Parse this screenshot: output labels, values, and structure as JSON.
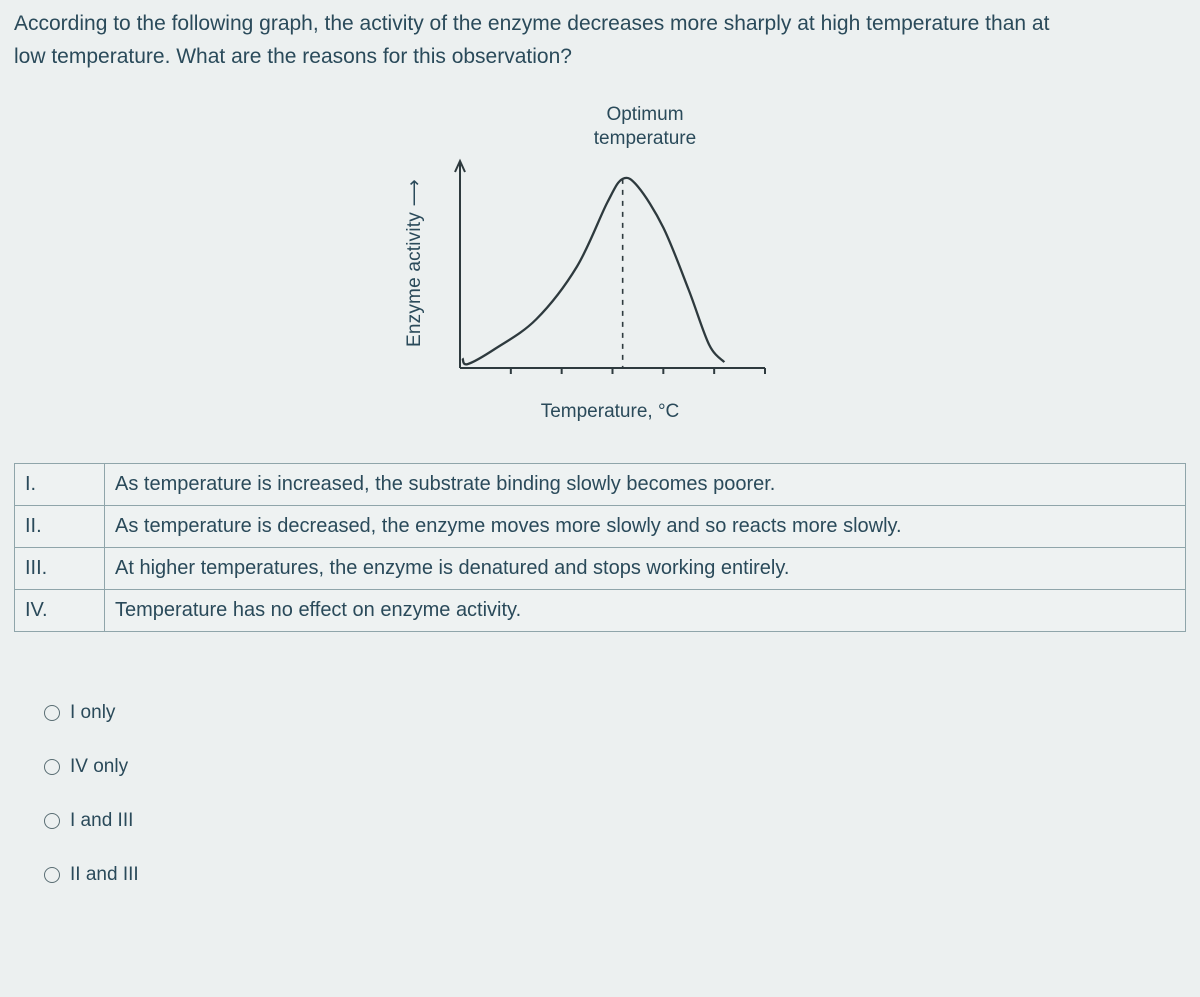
{
  "question": {
    "text_line1": "According to the following graph, the activity of the enzyme decreases more sharply at high temperature than at",
    "text_line2": "low temperature. What are the reasons for this observation?"
  },
  "chart": {
    "type": "line",
    "optimum_label_line1": "Optimum",
    "optimum_label_line2": "temperature",
    "x_label": "Temperature, °C",
    "y_label": "Enzyme activity ⟶",
    "axis_color": "#2e3a3e",
    "curve_color": "#2e3a3e",
    "dashed_color": "#2e3a3e",
    "background_color": "#ecf0f0",
    "xlim": [
      0,
      6
    ],
    "ylim": [
      0,
      1
    ],
    "x_ticks": [
      1,
      2,
      3,
      4,
      5,
      6
    ],
    "optimum_x": 3.2,
    "curve_points": [
      {
        "x": 0.05,
        "y": 0.05
      },
      {
        "x": 0.15,
        "y": 0.02
      },
      {
        "x": 0.7,
        "y": 0.1
      },
      {
        "x": 1.5,
        "y": 0.25
      },
      {
        "x": 2.3,
        "y": 0.52
      },
      {
        "x": 2.9,
        "y": 0.85
      },
      {
        "x": 3.2,
        "y": 0.97
      },
      {
        "x": 3.5,
        "y": 0.93
      },
      {
        "x": 4.0,
        "y": 0.72
      },
      {
        "x": 4.5,
        "y": 0.4
      },
      {
        "x": 4.9,
        "y": 0.12
      },
      {
        "x": 5.2,
        "y": 0.03
      }
    ],
    "stroke_width": 2.3
  },
  "statements": [
    {
      "num": "I.",
      "text": "As temperature is increased, the substrate binding slowly becomes poorer."
    },
    {
      "num": "II.",
      "text": "As temperature is decreased, the enzyme moves more slowly and so reacts more slowly."
    },
    {
      "num": "III.",
      "text": "At higher temperatures, the enzyme is denatured and stops working entirely."
    },
    {
      "num": "IV.",
      "text": "Temperature has no effect on enzyme activity."
    }
  ],
  "options": [
    {
      "label": "I only"
    },
    {
      "label": "IV only"
    },
    {
      "label": "I and III"
    },
    {
      "label": "II and III"
    }
  ]
}
